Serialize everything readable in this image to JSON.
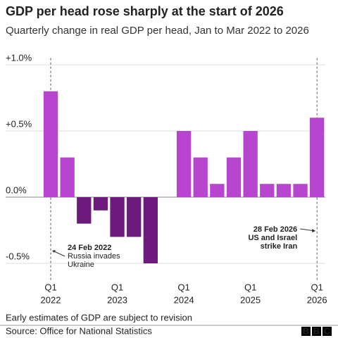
{
  "chart_data": {
    "type": "bar",
    "title": "GDP per head rose sharply at the start of 2026",
    "subtitle": "Quarterly change in real GDP per head, Jan to Mar 2022 to 2026",
    "categories": [
      [
        "Q1",
        "2022"
      ],
      null,
      null,
      null,
      [
        "Q1",
        "2023"
      ],
      null,
      null,
      null,
      [
        "Q1",
        "2024"
      ],
      null,
      null,
      null,
      [
        "Q1",
        "2025"
      ],
      null,
      null,
      null,
      [
        "Q1",
        "2026"
      ]
    ],
    "values": [
      0.8,
      0.3,
      -0.2,
      -0.1,
      -0.3,
      -0.3,
      -0.5,
      0,
      0.5,
      0.3,
      0.1,
      0.3,
      0.5,
      0.1,
      0.1,
      0.1,
      0.6
    ],
    "positive_color": "#b845cf",
    "negative_color": "#6c1a7c",
    "ylim": [
      -0.6,
      1.05
    ],
    "yticks": [
      {
        "value": -0.5,
        "label": "-0.5%"
      },
      {
        "value": 0,
        "label": "0.0%"
      },
      {
        "value": 0.5,
        "label": "+0.5%"
      },
      {
        "value": 1,
        "label": "+1.0%"
      }
    ],
    "grid": true,
    "annotations": [
      {
        "lines": [
          "24 Feb 2022",
          "Russia invades",
          "Ukraine"
        ]
      },
      {
        "lines": [
          "28 Feb 2026",
          "US and Israel",
          "strike Iran"
        ]
      }
    ],
    "note": "Early estimates of GDP are subject to revision",
    "source": "Source: Office for National Statistics",
    "logo": [
      "B",
      "B",
      "C"
    ]
  }
}
